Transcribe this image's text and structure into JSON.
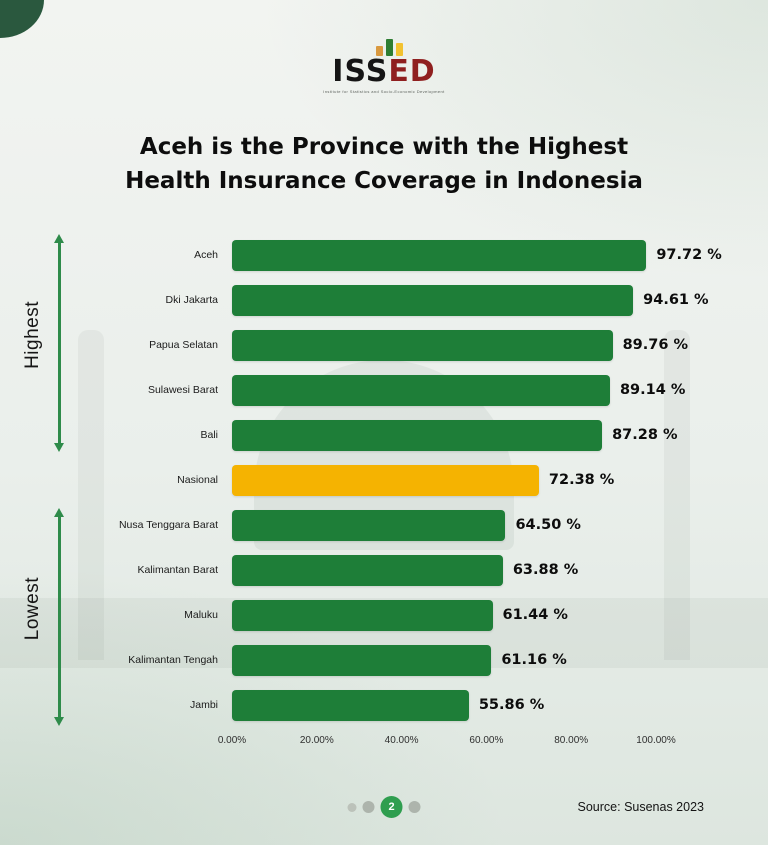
{
  "logo": {
    "text_primary": "ISS",
    "text_secondary": "ED",
    "tagline": "Institute for Statistics and Socio-Economic Development",
    "bar_colors": [
      "#d9993f",
      "#2e7d32",
      "#f2c230"
    ]
  },
  "title": {
    "line1": "Aceh is the Province with the Highest",
    "line2": "Health Insurance Coverage in Indonesia"
  },
  "chart_data": {
    "type": "bar",
    "orientation": "horizontal",
    "title": "Aceh is the Province with the Highest Health Insurance Coverage in Indonesia",
    "categories": [
      "Aceh",
      "Dki Jakarta",
      "Papua Selatan",
      "Sulawesi Barat",
      "Bali",
      "Nasional",
      "Nusa Tenggara Barat",
      "Kalimantan Barat",
      "Maluku",
      "Kalimantan Tengah",
      "Jambi"
    ],
    "values": [
      97.72,
      94.61,
      89.76,
      89.14,
      87.28,
      72.38,
      64.5,
      63.88,
      61.44,
      61.16,
      55.86
    ],
    "value_labels": [
      "97.72 %",
      "94.61 %",
      "89.76 %",
      "89.14 %",
      "87.28 %",
      "72.38 %",
      "64.50 %",
      "63.88 %",
      "61.44 %",
      "61.16 %",
      "55.86 %"
    ],
    "highlight_category": "Nasional",
    "bar_color": "#1e7e38",
    "highlight_color": "#f5b301",
    "x_ticks": [
      "0.00%",
      "20.00%",
      "40.00%",
      "60.00%",
      "80.00%",
      "100.00%"
    ],
    "xlim": [
      0,
      100
    ],
    "grid": false,
    "legend_position": "none",
    "group_labels": {
      "highest": "Highest",
      "lowest": "Lowest"
    }
  },
  "footer": {
    "source": "Source: Susenas 2023",
    "pagination": {
      "active_label": "2"
    }
  }
}
